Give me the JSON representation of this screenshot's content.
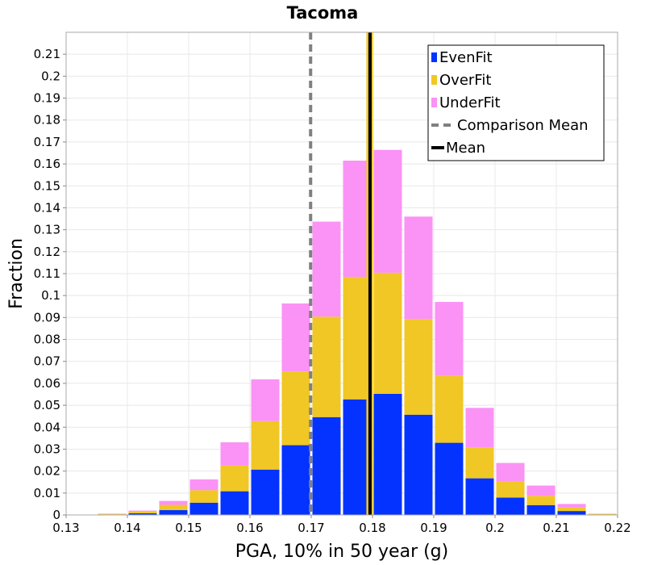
{
  "chart_data": {
    "type": "bar",
    "stacked": true,
    "title": "Tacoma",
    "xlabel": "PGA, 10% in 50 year (g)",
    "ylabel": "Fraction",
    "xlim": [
      0.13,
      0.22
    ],
    "ylim": [
      0,
      0.22
    ],
    "x_ticks": [
      "0.13",
      "0.14",
      "0.15",
      "0.16",
      "0.17",
      "0.18",
      "0.19",
      "0.2",
      "0.21",
      "0.22"
    ],
    "y_ticks": [
      "0",
      "0.01",
      "0.02",
      "0.03",
      "0.04",
      "0.05",
      "0.06",
      "0.07",
      "0.08",
      "0.09",
      "0.1",
      "0.11",
      "0.12",
      "0.13",
      "0.14",
      "0.15",
      "0.16",
      "0.17",
      "0.18",
      "0.19",
      "0.2",
      "0.21"
    ],
    "bin_width": 0.005,
    "bin_centers": [
      0.1325,
      0.1375,
      0.1425,
      0.1475,
      0.1525,
      0.1575,
      0.1625,
      0.1675,
      0.1725,
      0.1775,
      0.1825,
      0.1875,
      0.1925,
      0.1975,
      0.2025,
      0.2075,
      0.2125,
      0.2175
    ],
    "series": [
      {
        "name": "EvenFit",
        "color": "#0433ff",
        "values": [
          0.0,
          0.0002,
          0.0008,
          0.0022,
          0.0056,
          0.0108,
          0.0207,
          0.0318,
          0.0446,
          0.0527,
          0.0552,
          0.0457,
          0.0329,
          0.0167,
          0.0079,
          0.0045,
          0.0018,
          0.0002
        ]
      },
      {
        "name": "OverFit",
        "color": "#f0c724",
        "values": [
          0.0,
          0.0002,
          0.0008,
          0.0024,
          0.0057,
          0.0117,
          0.0221,
          0.0336,
          0.0458,
          0.0558,
          0.0552,
          0.0436,
          0.0305,
          0.0141,
          0.0074,
          0.0042,
          0.0016,
          0.0003
        ]
      },
      {
        "name": "UnderFit",
        "color": "#fb92f5",
        "values": [
          0.0,
          0.0002,
          0.0004,
          0.0018,
          0.0049,
          0.0106,
          0.019,
          0.031,
          0.0433,
          0.053,
          0.056,
          0.0467,
          0.0337,
          0.018,
          0.0084,
          0.0047,
          0.0016,
          0.0001
        ]
      }
    ],
    "lines": [
      {
        "name": "Comparison Mean",
        "x": 0.1699,
        "color": "#808080",
        "style": "dashed"
      },
      {
        "name": "Mean",
        "x": 0.1796,
        "color": "#000000",
        "style": "solid"
      }
    ],
    "highlight": {
      "x0": 0.179,
      "x1": 0.1801,
      "color": "#f0c724"
    },
    "legend": {
      "position": "top-right",
      "items": [
        {
          "label": "EvenFit",
          "kind": "box",
          "color": "#0433ff"
        },
        {
          "label": "OverFit",
          "kind": "box",
          "color": "#f0c724"
        },
        {
          "label": "UnderFit",
          "kind": "box",
          "color": "#fb92f5"
        },
        {
          "label": "Comparison Mean",
          "kind": "dashed",
          "color": "#808080"
        },
        {
          "label": "Mean",
          "kind": "solid",
          "color": "#000000"
        }
      ]
    },
    "grid": true
  }
}
